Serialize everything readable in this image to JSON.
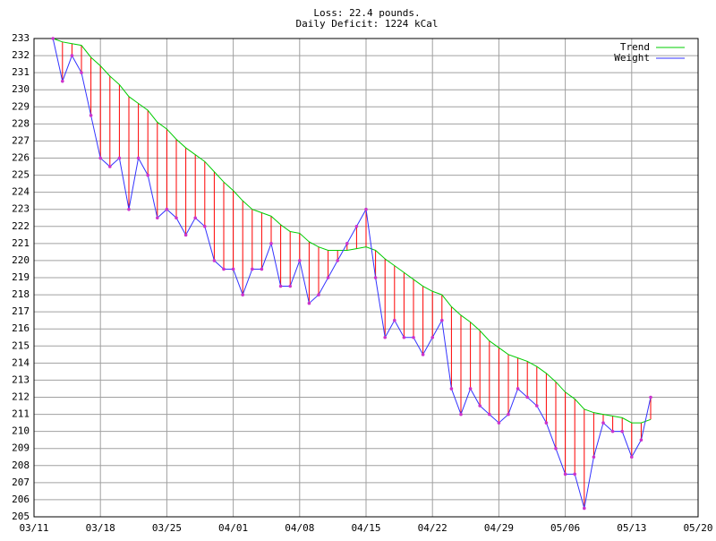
{
  "chart_data": {
    "type": "line",
    "title": "Loss: 22.4 pounds.",
    "subtitle": "Daily Deficit: 1224 kCal",
    "x": [
      "03/13",
      "03/14",
      "03/15",
      "03/16",
      "03/17",
      "03/18",
      "03/19",
      "03/20",
      "03/21",
      "03/22",
      "03/23",
      "03/24",
      "03/25",
      "03/26",
      "03/27",
      "03/28",
      "03/29",
      "03/30",
      "03/31",
      "04/01",
      "04/02",
      "04/03",
      "04/04",
      "04/05",
      "04/06",
      "04/07",
      "04/08",
      "04/09",
      "04/10",
      "04/11",
      "04/12",
      "04/13",
      "04/14",
      "04/15",
      "04/16",
      "04/17",
      "04/18",
      "04/19",
      "04/20",
      "04/21",
      "04/22",
      "04/23",
      "04/24",
      "04/25",
      "04/26",
      "04/27",
      "04/28",
      "04/29",
      "04/30",
      "05/01",
      "05/02",
      "05/03",
      "05/04",
      "05/05",
      "05/06",
      "05/07",
      "05/08",
      "05/09",
      "05/10",
      "05/11",
      "05/12",
      "05/13",
      "05/14",
      "05/15"
    ],
    "series": [
      {
        "name": "Trend",
        "color": "#00cc00",
        "values": [
          233,
          232.8,
          232.7,
          232.6,
          231.9,
          231.4,
          230.8,
          230.3,
          229.6,
          229.2,
          228.8,
          228.1,
          227.7,
          227.1,
          226.6,
          226.2,
          225.8,
          225.2,
          224.6,
          224.1,
          223.5,
          223.0,
          222.8,
          222.6,
          222.1,
          221.7,
          221.6,
          221.1,
          220.8,
          220.6,
          220.6,
          220.6,
          220.7,
          220.8,
          220.6,
          220.1,
          219.7,
          219.3,
          218.9,
          218.5,
          218.2,
          218.0,
          217.3,
          216.8,
          216.4,
          215.9,
          215.3,
          214.9,
          214.5,
          214.3,
          214.1,
          213.8,
          213.4,
          212.9,
          212.3,
          211.9,
          211.3,
          211.1,
          211.0,
          210.9,
          210.8,
          210.5,
          210.5,
          210.7
        ]
      },
      {
        "name": "Weight",
        "color": "#3333ff",
        "values": [
          233,
          230.5,
          232,
          231,
          228.5,
          226,
          225.5,
          226,
          223,
          226,
          225,
          222.5,
          223,
          222.5,
          221.5,
          222.5,
          222,
          220,
          219.5,
          219.5,
          218,
          219.5,
          219.5,
          221,
          218.5,
          218.5,
          220,
          217.5,
          218,
          219,
          220,
          221,
          222,
          223,
          219,
          215.5,
          216.5,
          215.5,
          215.5,
          214.5,
          215.5,
          216.5,
          212.5,
          211,
          212.5,
          211.5,
          211,
          210.5,
          211,
          212.5,
          212,
          211.5,
          210.5,
          209,
          207.5,
          207.5,
          205.5,
          208.5,
          210.5,
          210,
          210,
          208.5,
          209.5,
          212
        ]
      }
    ],
    "deficit_color": "#ff0000",
    "xlim": [
      "03/11",
      "05/20"
    ],
    "xticks": [
      "03/11",
      "03/18",
      "03/25",
      "04/01",
      "04/08",
      "04/15",
      "04/22",
      "04/29",
      "05/06",
      "05/13",
      "05/20"
    ],
    "ylim": [
      205,
      233
    ],
    "yticks": [
      205,
      206,
      207,
      208,
      209,
      210,
      211,
      212,
      213,
      214,
      215,
      216,
      217,
      218,
      219,
      220,
      221,
      222,
      223,
      224,
      225,
      226,
      227,
      228,
      229,
      230,
      231,
      232,
      233
    ],
    "grid": true,
    "legend": "top-right"
  }
}
